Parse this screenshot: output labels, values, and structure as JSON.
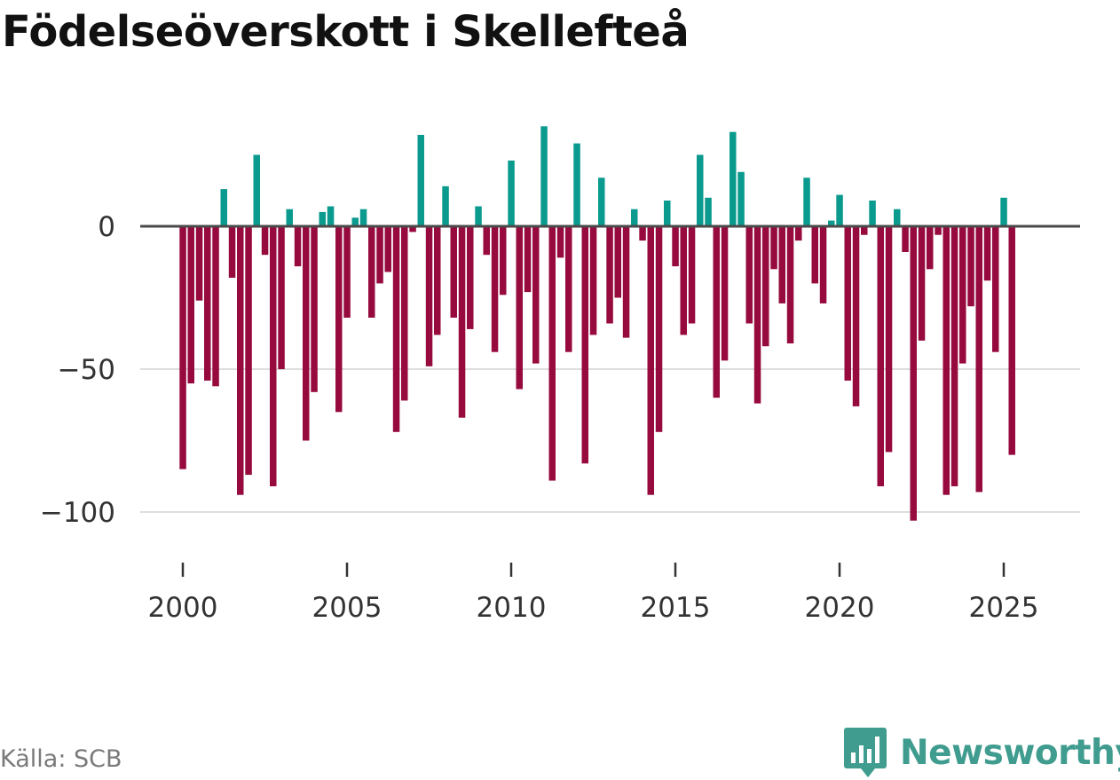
{
  "title": "Födelseöverskott i Skellefteå",
  "source": "Källa: SCB",
  "brand": {
    "name": "Newsworthy",
    "icon": "newsworthy-logo-icon"
  },
  "colors": {
    "positive": "#0a9a8e",
    "negative": "#960a3e",
    "zero_line": "#4a4a4a",
    "grid": "#dddddd",
    "brand": "#3f9c8e",
    "text": "#333333"
  },
  "chart_data": {
    "type": "bar",
    "title": "Födelseöverskott i Skellefteå",
    "xlabel": "",
    "ylabel": "",
    "ylim": [
      -110,
      40
    ],
    "xlim": [
      1999.5,
      2027.3
    ],
    "yticks": [
      0,
      -50,
      -100
    ],
    "ytick_labels": [
      "0",
      "−50",
      "−100"
    ],
    "xticks": [
      2000,
      2005,
      2010,
      2015,
      2020,
      2025
    ],
    "xtick_labels": [
      "2000",
      "2005",
      "2010",
      "2015",
      "2020",
      "2025"
    ],
    "start_year": 2000,
    "start_month": 1,
    "frequency": "monthly, every 3rd month shown",
    "grid": true,
    "values": [
      -85,
      -55,
      -26,
      -54,
      -56,
      13,
      -18,
      -94,
      -87,
      25,
      -10,
      -91,
      -50,
      6,
      -14,
      -75,
      -58,
      5,
      7,
      -65,
      -32,
      3,
      6,
      -32,
      -20,
      -16,
      -72,
      -61,
      -2,
      32,
      -49,
      -38,
      14,
      -32,
      -67,
      -36,
      7,
      -10,
      -44,
      -24,
      23,
      -57,
      -23,
      -48,
      35,
      -89,
      -11,
      -44,
      29,
      -83,
      -38,
      17,
      -34,
      -25,
      -39,
      6,
      -5,
      -94,
      -72,
      9,
      -14,
      -38,
      -34,
      25,
      10,
      -60,
      -47,
      33,
      19,
      -34,
      -62,
      -42,
      -15,
      -27,
      -41,
      -5,
      17,
      -20,
      -27,
      2,
      11,
      -54,
      -63,
      -3,
      9,
      -91,
      -79,
      6,
      -9,
      -103,
      -40,
      -15,
      -3,
      -94,
      -91,
      -48,
      -28,
      -93,
      -19,
      -44,
      10,
      -80
    ]
  }
}
